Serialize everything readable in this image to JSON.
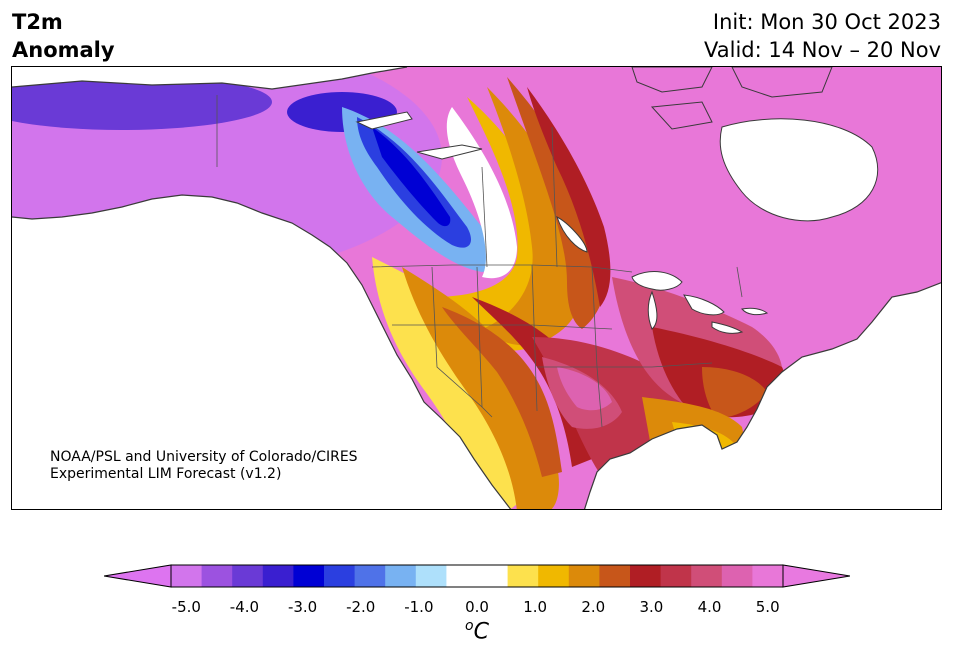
{
  "header": {
    "variable": "T2m",
    "field": "Anomaly",
    "init": "Init: Mon 30 Oct 2023",
    "valid": "Valid: 14 Nov – 20 Nov"
  },
  "credit": {
    "line1": "NOAA/PSL and University of Colorado/CIRES",
    "line2": "Experimental LIM Forecast (v1.2)"
  },
  "colorbar": {
    "unit_base": "C",
    "unit_prefix": "o",
    "ticks": [
      "-5.0",
      "-4.0",
      "-3.0",
      "-2.0",
      "-1.0",
      "0.0",
      "1.0",
      "2.0",
      "3.0",
      "4.0",
      "5.0"
    ],
    "under_color": "#dd74f0",
    "over_color": "#e879e0",
    "colors": [
      "#d275ec",
      "#9c52e0",
      "#6a3ad6",
      "#3a1fd0",
      "#0000d4",
      "#2b3fe0",
      "#4f72e8",
      "#78b2f2",
      "#aee0fb",
      "#ffffff",
      "#ffffff",
      "#fde14d",
      "#f0b800",
      "#dc8a0a",
      "#c7561a",
      "#b01e24",
      "#c0344a",
      "#d04e78",
      "#dd62b0",
      "#e877d8"
    ]
  }
}
